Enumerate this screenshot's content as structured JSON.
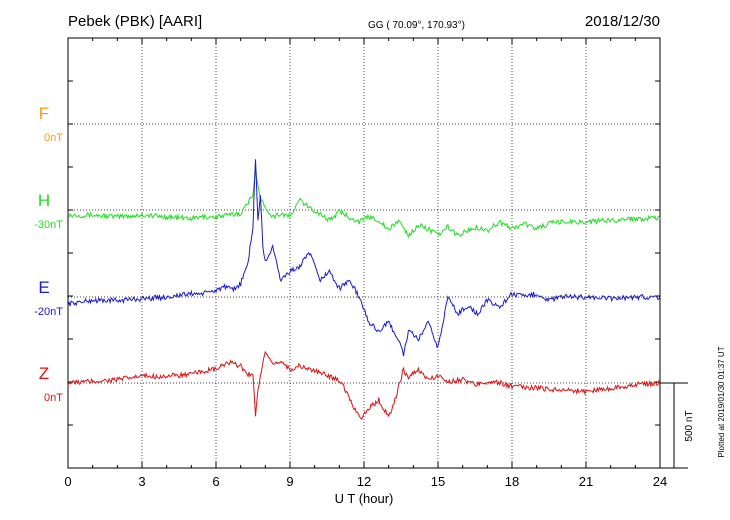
{
  "header": {
    "station": "Pebek (PBK)  [AARI]",
    "coords": "GG ( 70.09°, 170.93°)",
    "date": "2018/12/30"
  },
  "footer": {
    "plotted": "Plotted at 2019/01/30 01:37 UT"
  },
  "colors": {
    "F": "#f5a000",
    "H": "#22dd22",
    "E": "#1a1acc",
    "Z": "#dd1111"
  },
  "chart_data": {
    "type": "line",
    "xlabel": "U T (hour)",
    "xlim": [
      0,
      24
    ],
    "xticks": [
      "0",
      "3",
      "6",
      "9",
      "12",
      "15",
      "18",
      "21",
      "24"
    ],
    "grid": true,
    "scale_bar": "500 nT",
    "series": [
      {
        "name": "F",
        "baseline_label": "0nT",
        "x": [],
        "values": []
      },
      {
        "name": "H",
        "baseline_label": "-30nT",
        "x": [
          0,
          1,
          2,
          3,
          4,
          5,
          5.5,
          6,
          6.5,
          7,
          7.3,
          7.5,
          7.6,
          7.7,
          7.8,
          8,
          8.3,
          8.6,
          9,
          9.4,
          9.8,
          10.2,
          10.6,
          11,
          11.4,
          11.8,
          12.2,
          12.6,
          13,
          13.4,
          13.8,
          14.2,
          14.6,
          15,
          15.4,
          15.8,
          16.2,
          16.6,
          17,
          17.5,
          18,
          18.5,
          19,
          19.5,
          20,
          21,
          22,
          23,
          24
        ],
        "values": [
          -30,
          -30,
          -40,
          -30,
          -40,
          -50,
          -40,
          -40,
          -30,
          -20,
          40,
          100,
          250,
          150,
          60,
          20,
          -40,
          -20,
          -40,
          60,
          10,
          -20,
          -60,
          -10,
          -40,
          -70,
          -40,
          -60,
          -120,
          -60,
          -150,
          -90,
          -110,
          -150,
          -100,
          -150,
          -120,
          -100,
          -120,
          -70,
          -110,
          -80,
          -110,
          -80,
          -70,
          -70,
          -60,
          -50,
          -50
        ]
      },
      {
        "name": "E",
        "baseline_label": "-20nT",
        "x": [
          0,
          1,
          2,
          3,
          4,
          5,
          5.5,
          6,
          6.3,
          6.7,
          7,
          7.3,
          7.5,
          7.6,
          7.7,
          7.8,
          7.9,
          8,
          8.3,
          8.6,
          9,
          9.4,
          9.8,
          10.2,
          10.6,
          11,
          11.4,
          11.8,
          12.2,
          12.6,
          13,
          13.4,
          13.6,
          13.8,
          14.2,
          14.6,
          15,
          15.4,
          15.8,
          16.2,
          16.6,
          17,
          17.5,
          18,
          18.5,
          19,
          19.5,
          20,
          21,
          22,
          23,
          24
        ],
        "values": [
          -40,
          -20,
          -20,
          -10,
          0,
          20,
          20,
          40,
          60,
          40,
          80,
          200,
          420,
          820,
          450,
          600,
          300,
          200,
          300,
          100,
          150,
          180,
          260,
          100,
          150,
          50,
          100,
          0,
          -150,
          -200,
          -150,
          -250,
          -340,
          -200,
          -250,
          -150,
          -300,
          0,
          -100,
          -50,
          -100,
          -20,
          -60,
          20,
          0,
          20,
          -20,
          0,
          0,
          -10,
          0,
          0
        ]
      },
      {
        "name": "Z",
        "baseline_label": "0nT",
        "x": [
          0,
          1,
          2,
          3,
          4,
          5,
          5.5,
          6,
          6.5,
          7,
          7.3,
          7.5,
          7.6,
          7.7,
          7.8,
          8,
          8.3,
          8.6,
          9,
          9.4,
          9.8,
          10.2,
          10.6,
          11,
          11.3,
          11.6,
          11.9,
          12.2,
          12.6,
          13,
          13.3,
          13.6,
          13.8,
          14.2,
          14.6,
          15,
          15.5,
          16,
          16.5,
          17,
          17.5,
          18,
          19,
          20,
          21,
          22,
          23,
          24
        ],
        "values": [
          0,
          10,
          20,
          40,
          40,
          50,
          70,
          80,
          120,
          100,
          50,
          60,
          -200,
          -50,
          50,
          180,
          100,
          130,
          80,
          100,
          80,
          60,
          40,
          20,
          -50,
          -150,
          -200,
          -150,
          -100,
          -200,
          -80,
          80,
          30,
          80,
          20,
          40,
          10,
          20,
          -10,
          10,
          0,
          -20,
          -30,
          -40,
          -50,
          -30,
          -10,
          0
        ]
      }
    ]
  }
}
